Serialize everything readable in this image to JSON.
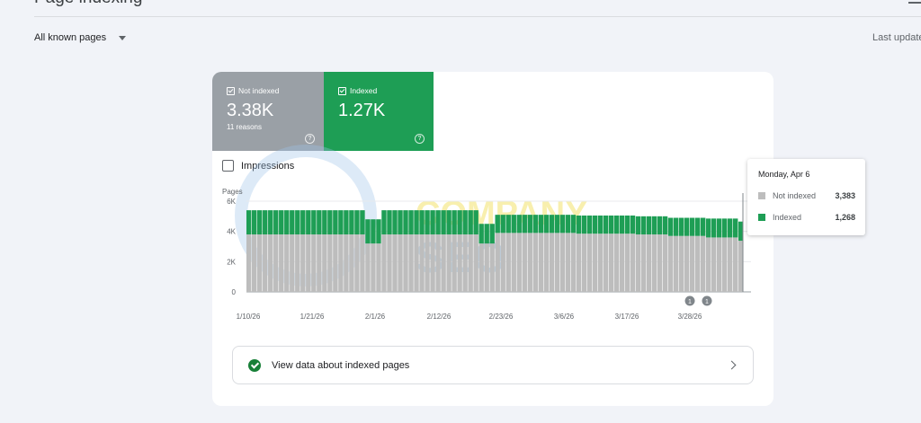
{
  "header": {
    "title": "Page indexing",
    "menu_icon": "menu-icon"
  },
  "filter": {
    "selected": "All known pages",
    "last_update": "Last update"
  },
  "tiles": {
    "not_indexed": {
      "label": "Not indexed",
      "value": "3.38K",
      "sub": "11 reasons",
      "color": "#9aa0a6"
    },
    "indexed": {
      "label": "Indexed",
      "value": "1.27K",
      "color": "#1e9e55"
    }
  },
  "impressions_label": "Impressions",
  "tooltip": {
    "date": "Monday, Apr 6",
    "rows": [
      {
        "label": "Not indexed",
        "value": "3,383",
        "color": "#bdbdbd"
      },
      {
        "label": "Indexed",
        "value": "1,268",
        "color": "#1e9e55"
      }
    ]
  },
  "annotations": [
    "1",
    "1"
  ],
  "watermark": {
    "line1": "COMPANY",
    "line2": "SEO"
  },
  "banner": {
    "text": "View data about indexed pages"
  },
  "chart_data": {
    "type": "bar",
    "stacked": true,
    "ylabel": "Pages",
    "yticks": [
      "0",
      "2K",
      "4K",
      "6K"
    ],
    "ylim": [
      0,
      6000
    ],
    "xtick_labels": [
      "1/10/26",
      "1/21/26",
      "2/1/26",
      "2/12/26",
      "2/23/26",
      "3/6/26",
      "3/17/26",
      "3/28/26"
    ],
    "series": [
      {
        "name": "Not indexed",
        "color": "#bdbdbd",
        "values": [
          3800,
          3800,
          3800,
          3800,
          3800,
          3800,
          3800,
          3800,
          3800,
          3800,
          3800,
          3800,
          3800,
          3800,
          3800,
          3800,
          3800,
          3800,
          3800,
          3800,
          3800,
          3800,
          3200,
          3200,
          3200,
          3800,
          3800,
          3800,
          3800,
          3800,
          3800,
          3800,
          3800,
          3800,
          3800,
          3800,
          3800,
          3800,
          3800,
          3800,
          3800,
          3800,
          3800,
          3200,
          3200,
          3200,
          3900,
          3900,
          3900,
          3900,
          3900,
          3900,
          3900,
          3900,
          3900,
          3900,
          3900,
          3900,
          3900,
          3900,
          3900,
          3850,
          3850,
          3850,
          3850,
          3850,
          3850,
          3850,
          3850,
          3850,
          3850,
          3850,
          3800,
          3800,
          3800,
          3800,
          3800,
          3800,
          3700,
          3700,
          3700,
          3700,
          3700,
          3700,
          3700,
          3600,
          3600,
          3600,
          3600,
          3600,
          3600,
          3383
        ]
      },
      {
        "name": "Indexed",
        "color": "#1e9e55",
        "values": [
          1600,
          1600,
          1600,
          1600,
          1600,
          1600,
          1600,
          1600,
          1600,
          1600,
          1600,
          1600,
          1600,
          1600,
          1600,
          1600,
          1600,
          1600,
          1600,
          1600,
          1600,
          1600,
          1600,
          1600,
          1600,
          1600,
          1600,
          1600,
          1600,
          1600,
          1600,
          1600,
          1600,
          1600,
          1600,
          1600,
          1600,
          1600,
          1600,
          1600,
          1600,
          1600,
          1600,
          1300,
          1300,
          1300,
          1200,
          1200,
          1200,
          1200,
          1200,
          1200,
          1200,
          1200,
          1200,
          1200,
          1200,
          1200,
          1200,
          1200,
          1200,
          1200,
          1200,
          1200,
          1200,
          1200,
          1200,
          1200,
          1200,
          1200,
          1200,
          1200,
          1200,
          1200,
          1200,
          1200,
          1200,
          1200,
          1200,
          1200,
          1200,
          1200,
          1200,
          1200,
          1200,
          1250,
          1250,
          1250,
          1250,
          1250,
          1250,
          1268
        ]
      }
    ]
  }
}
